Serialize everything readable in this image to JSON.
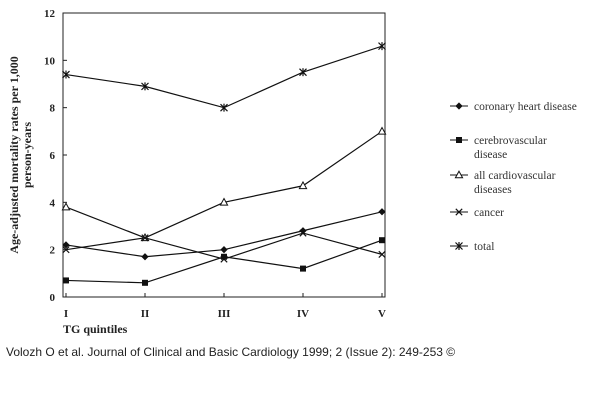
{
  "chart_data": {
    "type": "line",
    "title": "",
    "xlabel": "TG quintiles",
    "ylabel_lines": [
      "Age-adjusted mortality rates per 1,000",
      "person-years"
    ],
    "categories": [
      "I",
      "II",
      "III",
      "IV",
      "V"
    ],
    "ylim": [
      0,
      12
    ],
    "yticks": [
      "0",
      "2",
      "4",
      "6",
      "8",
      "10",
      "12"
    ],
    "grid": false,
    "legend_position": "right",
    "series": [
      {
        "name": "coronary heart disease",
        "marker": "diamond",
        "values": [
          2.2,
          1.7,
          2.0,
          2.8,
          3.6
        ]
      },
      {
        "name": "cerebrovascular disease",
        "marker": "square",
        "values": [
          0.7,
          0.6,
          1.7,
          1.2,
          2.4
        ]
      },
      {
        "name": "all cardiovascular diseases",
        "marker": "open-triangle",
        "values": [
          3.8,
          2.5,
          4.0,
          4.7,
          7.0
        ]
      },
      {
        "name": "cancer",
        "marker": "x",
        "values": [
          2.0,
          2.5,
          1.6,
          2.7,
          1.8
        ]
      },
      {
        "name": "total",
        "marker": "asterisk",
        "values": [
          9.4,
          8.9,
          8.0,
          9.5,
          10.6
        ]
      }
    ],
    "legend": [
      {
        "lines": [
          "coronary heart disease"
        ],
        "marker": "diamond"
      },
      {
        "lines": [
          "cerebrovascular",
          "disease"
        ],
        "marker": "square"
      },
      {
        "lines": [
          "all cardiovascular",
          "diseases"
        ],
        "marker": "open-triangle"
      },
      {
        "lines": [
          "cancer"
        ],
        "marker": "x"
      },
      {
        "lines": [
          "total"
        ],
        "marker": "asterisk"
      }
    ]
  },
  "caption": "Volozh O et al. Journal of Clinical and Basic Cardiology 1999; 2 (Issue 2): 249-253 ©"
}
